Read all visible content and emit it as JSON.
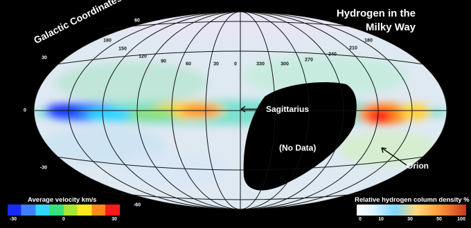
{
  "title_line1": "Hydrogen in the",
  "title_line2": "Milky Way",
  "coord_label": "Galactic Coordinates",
  "annotations": {
    "sagittarius": "Sagittarius",
    "no_data": "(No Data)",
    "orion": "Orion"
  },
  "longitude_ticks": [
    "180",
    "150",
    "120",
    "90",
    "60",
    "30",
    "0",
    "330",
    "300",
    "270",
    "240",
    "210",
    "180"
  ],
  "latitude_ticks": {
    "top": "60",
    "upper": "30",
    "equator": "0",
    "lower": "-30",
    "bottom": "-60"
  },
  "velocity_legend": {
    "title": "Average velocity km/s",
    "ticks": [
      "-30",
      "0",
      "30"
    ],
    "colors": [
      "#1a2aff",
      "#3f7fff",
      "#2fd6ff",
      "#33e27a",
      "#a6e533",
      "#ffe81a",
      "#ff8a1a",
      "#ff1a1a"
    ]
  },
  "density_legend": {
    "title": "Relative hydrogen column density %",
    "ticks": [
      "0",
      "10",
      "30",
      "50",
      "100"
    ]
  }
}
